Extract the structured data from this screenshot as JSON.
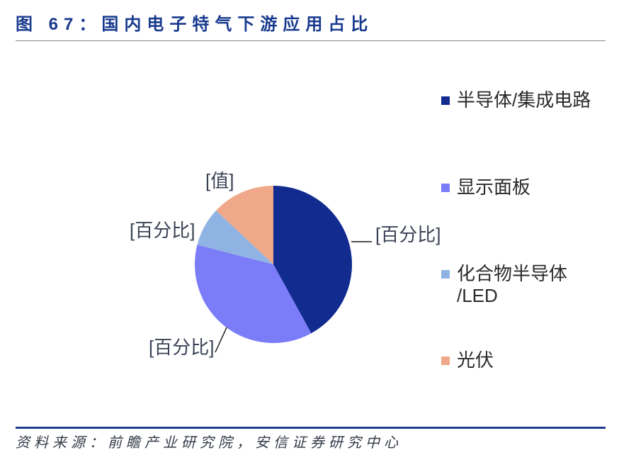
{
  "theme": {
    "accent": "#183a8e",
    "footer_rule": "#1f3d8d"
  },
  "chart_data": {
    "type": "pie",
    "title": "图 67：国内电子特气下游应用占比",
    "categories": [
      "半导体/集成电路",
      "显示面板",
      "化合物半导体/LED",
      "光伏"
    ],
    "values": [
      42,
      37,
      8,
      13
    ],
    "data_labels": [
      "[百分比]",
      "[百分比]",
      "[百分比]",
      "[值]"
    ],
    "colors": [
      "#112b8f",
      "#7b7cf8",
      "#8fb4e3",
      "#efa98a"
    ],
    "legend_position": "right"
  },
  "footer": {
    "source": "资料来源：前瞻产业研究院，安信证券研究中心"
  }
}
